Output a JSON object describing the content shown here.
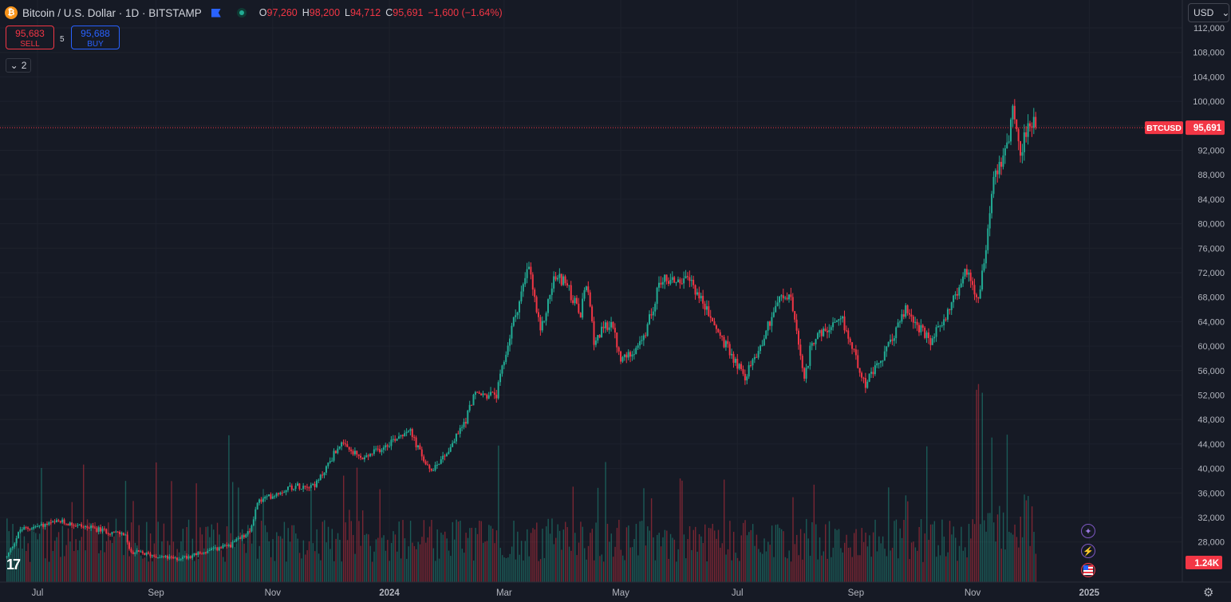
{
  "header": {
    "coin_glyph": "₿",
    "title": "Bitcoin / U.S. Dollar · 1D · BITSTAMP",
    "ohlc": [
      {
        "k": "O",
        "v": "97,260"
      },
      {
        "k": "H",
        "v": "98,200"
      },
      {
        "k": "L",
        "v": "94,712"
      },
      {
        "k": "C",
        "v": "95,691"
      },
      {
        "k": "",
        "v": "−1,600 (−1.64%)"
      }
    ]
  },
  "trade": {
    "sell_price": "95,683",
    "sell_label": "SELL",
    "buy_price": "95,688",
    "buy_label": "BUY",
    "spread": "5"
  },
  "collapse_label": "2",
  "currency": "USD",
  "logo_text": "17",
  "colors": {
    "up": "#22ab94",
    "down": "#f23645",
    "background": "#161a25",
    "accent": "#2962ff"
  },
  "icons": [
    "bitcoin-icon",
    "flag-icon",
    "market-status-icon",
    "chevron-down-icon",
    "sparkle-icon",
    "lightning-icon",
    "us-flag-icon",
    "settings-gear-icon"
  ],
  "chart_data": {
    "type": "candlestick",
    "symbol": "BTCUSD",
    "interval": "1D",
    "exchange": "BITSTAMP",
    "y_ticks": [
      "112,000",
      "108,000",
      "104,000",
      "100,000",
      "96,000",
      "92,000",
      "88,000",
      "84,000",
      "80,000",
      "76,000",
      "72,000",
      "68,000",
      "64,000",
      "60,000",
      "56,000",
      "52,000",
      "48,000",
      "44,000",
      "40,000",
      "36,000",
      "32,000",
      "28,000"
    ],
    "x_ticks": [
      "Jul",
      "Sep",
      "Nov",
      "2024",
      "Mar",
      "May",
      "Jul",
      "Sep",
      "Nov",
      "2025"
    ],
    "ylim": [
      25000,
      113000
    ],
    "last_price": 95691,
    "last_price_label": "95,691",
    "price_tag": "BTCUSD",
    "volume_label": "1.24K",
    "close_path": [
      {
        "date": "2023-06-15",
        "c": 25500
      },
      {
        "date": "2023-06-22",
        "c": 30000
      },
      {
        "date": "2023-07-13",
        "c": 31300
      },
      {
        "date": "2023-08-10",
        "c": 29500
      },
      {
        "date": "2023-08-16",
        "c": 29200
      },
      {
        "date": "2023-08-18",
        "c": 26500
      },
      {
        "date": "2023-09-11",
        "c": 25200
      },
      {
        "date": "2023-09-25",
        "c": 26200
      },
      {
        "date": "2023-10-10",
        "c": 27500
      },
      {
        "date": "2023-10-20",
        "c": 29600
      },
      {
        "date": "2023-10-24",
        "c": 34500
      },
      {
        "date": "2023-11-10",
        "c": 37000
      },
      {
        "date": "2023-11-24",
        "c": 37500
      },
      {
        "date": "2023-12-06",
        "c": 44000
      },
      {
        "date": "2023-12-18",
        "c": 41500
      },
      {
        "date": "2023-12-26",
        "c": 43000
      },
      {
        "date": "2024-01-11",
        "c": 46500
      },
      {
        "date": "2024-01-22",
        "c": 39500
      },
      {
        "date": "2024-02-01",
        "c": 43000
      },
      {
        "date": "2024-02-10",
        "c": 48000
      },
      {
        "date": "2024-02-14",
        "c": 52000
      },
      {
        "date": "2024-02-26",
        "c": 52000
      },
      {
        "date": "2024-03-05",
        "c": 63000
      },
      {
        "date": "2024-03-14",
        "c": 73000
      },
      {
        "date": "2024-03-20",
        "c": 62000
      },
      {
        "date": "2024-03-27",
        "c": 71000
      },
      {
        "date": "2024-04-01",
        "c": 71000
      },
      {
        "date": "2024-04-10",
        "c": 65000
      },
      {
        "date": "2024-04-13",
        "c": 70500
      },
      {
        "date": "2024-04-17",
        "c": 61000
      },
      {
        "date": "2024-04-26",
        "c": 64000
      },
      {
        "date": "2024-05-01",
        "c": 57500
      },
      {
        "date": "2024-05-13",
        "c": 61000
      },
      {
        "date": "2024-05-22",
        "c": 71000
      },
      {
        "date": "2024-06-07",
        "c": 70500
      },
      {
        "date": "2024-06-24",
        "c": 60500
      },
      {
        "date": "2024-07-05",
        "c": 55000
      },
      {
        "date": "2024-07-13",
        "c": 60000
      },
      {
        "date": "2024-07-22",
        "c": 67500
      },
      {
        "date": "2024-07-29",
        "c": 68000
      },
      {
        "date": "2024-08-05",
        "c": 54000
      },
      {
        "date": "2024-08-09",
        "c": 61000
      },
      {
        "date": "2024-08-25",
        "c": 64000
      },
      {
        "date": "2024-09-06",
        "c": 53800
      },
      {
        "date": "2024-09-15",
        "c": 58000
      },
      {
        "date": "2024-09-27",
        "c": 66000
      },
      {
        "date": "2024-10-10",
        "c": 60500
      },
      {
        "date": "2024-10-22",
        "c": 67500
      },
      {
        "date": "2024-10-29",
        "c": 72500
      },
      {
        "date": "2024-11-04",
        "c": 67800
      },
      {
        "date": "2024-11-08",
        "c": 76500
      },
      {
        "date": "2024-11-12",
        "c": 88000
      },
      {
        "date": "2024-11-19",
        "c": 92500
      },
      {
        "date": "2024-11-22",
        "c": 99000
      },
      {
        "date": "2024-11-26",
        "c": 91500
      },
      {
        "date": "2024-12-01",
        "c": 97200
      },
      {
        "date": "2024-12-04",
        "c": 95691
      }
    ]
  }
}
